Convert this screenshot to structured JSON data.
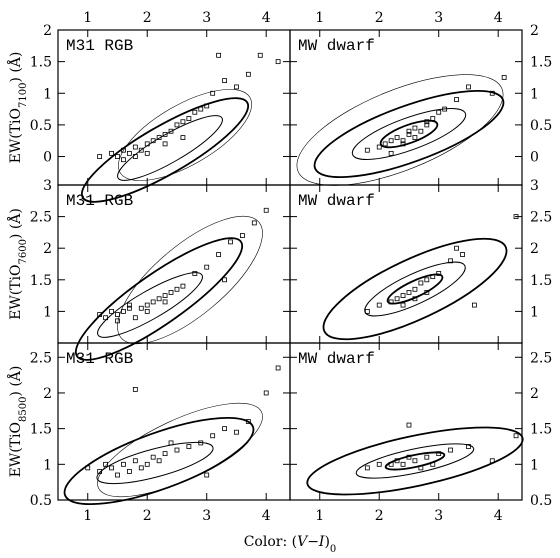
{
  "xlabel": [
    "Color: (",
    "V−I",
    ")",
    "0"
  ],
  "chart_data": [
    {
      "type": "scatter",
      "title": "M31 RGB",
      "ylabel": [
        "EW(TiO",
        "7100",
        ") (Å)"
      ],
      "x": [
        1.2,
        1.4,
        1.5,
        1.6,
        1.7,
        1.8,
        1.9,
        2.0,
        2.1,
        2.2,
        2.3,
        2.4,
        2.5,
        2.6,
        2.7,
        2.8,
        2.9,
        3.0,
        3.1,
        3.3,
        3.5,
        3.7,
        3.9,
        4.2,
        1.6,
        1.8,
        2.0,
        2.3,
        2.6,
        3.2
      ],
      "y": [
        0.0,
        0.05,
        0.0,
        0.1,
        0.05,
        0.15,
        0.1,
        0.2,
        0.25,
        0.3,
        0.35,
        0.4,
        0.5,
        0.55,
        0.6,
        0.7,
        0.75,
        0.8,
        1.0,
        1.2,
        1.1,
        1.3,
        1.6,
        1.5,
        -0.05,
        0.0,
        0.05,
        0.2,
        0.3,
        1.6
      ],
      "xlim": [
        0.5,
        4.4
      ],
      "ylim": [
        -0.45,
        2
      ],
      "xticks": [
        1,
        2,
        3,
        4
      ],
      "yticks": [
        0,
        0.5,
        1,
        1.5,
        2
      ],
      "xtick_labels": "top",
      "ytick_labels": "left"
    },
    {
      "type": "scatter",
      "title": "MW dwarf",
      "x": [
        1.8,
        2.0,
        2.1,
        2.2,
        2.3,
        2.4,
        2.5,
        2.5,
        2.6,
        2.7,
        2.8,
        2.9,
        3.0,
        3.1,
        3.3,
        3.5,
        2.2,
        2.4,
        2.6,
        2.8,
        3.9,
        4.1
      ],
      "y": [
        0.1,
        0.15,
        0.2,
        0.25,
        0.3,
        0.25,
        0.35,
        0.4,
        0.45,
        0.4,
        0.55,
        0.6,
        0.7,
        0.75,
        0.9,
        1.1,
        0.05,
        0.2,
        0.3,
        0.5,
        1.0,
        1.25
      ],
      "xlim": [
        0.5,
        4.4
      ],
      "ylim": [
        -0.45,
        2
      ],
      "xticks": [
        1,
        2,
        3,
        4
      ],
      "yticks": [
        0,
        0.5,
        1,
        1.5,
        2
      ],
      "xtick_labels": "top",
      "ytick_labels": "right"
    },
    {
      "type": "scatter",
      "title": "M31 RGB",
      "ylabel": [
        "EW(TiO",
        "7600",
        ") (Å)"
      ],
      "x": [
        1.2,
        1.3,
        1.4,
        1.5,
        1.6,
        1.7,
        1.8,
        1.9,
        2.0,
        2.1,
        2.2,
        2.3,
        2.4,
        2.5,
        2.6,
        2.8,
        3.0,
        3.2,
        3.4,
        3.6,
        3.8,
        1.5,
        1.7,
        2.0,
        2.3,
        3.3,
        4.0
      ],
      "y": [
        0.95,
        0.9,
        1.0,
        0.95,
        1.0,
        1.05,
        0.9,
        1.05,
        1.1,
        1.15,
        1.2,
        1.25,
        1.3,
        1.35,
        1.4,
        1.6,
        1.7,
        1.9,
        2.1,
        2.2,
        2.4,
        0.85,
        1.1,
        1.0,
        1.15,
        1.5,
        2.6
      ],
      "xlim": [
        0.5,
        4.4
      ],
      "ylim": [
        0.5,
        3
      ],
      "xticks": [
        1,
        2,
        3,
        4
      ],
      "yticks": [
        1,
        1.5,
        2,
        2.5,
        3
      ],
      "ytick_labels": "left"
    },
    {
      "type": "scatter",
      "title": "MW dwarf",
      "x": [
        1.8,
        2.0,
        2.2,
        2.3,
        2.4,
        2.5,
        2.6,
        2.7,
        2.8,
        2.9,
        3.0,
        3.2,
        3.4,
        2.4,
        2.6,
        2.8,
        3.3,
        3.6,
        4.3
      ],
      "y": [
        1.0,
        1.1,
        1.15,
        1.2,
        1.25,
        1.3,
        1.35,
        1.45,
        1.5,
        1.55,
        1.6,
        1.8,
        1.9,
        1.1,
        1.2,
        1.3,
        2.0,
        1.1,
        2.5
      ],
      "xlim": [
        0.5,
        4.4
      ],
      "ylim": [
        0.5,
        3
      ],
      "xticks": [
        1,
        2,
        3,
        4
      ],
      "yticks": [
        1,
        1.5,
        2,
        2.5,
        3
      ],
      "ytick_labels": "right"
    },
    {
      "type": "scatter",
      "title": "M31 RGB",
      "ylabel": [
        "EW(TiO",
        "8500",
        ") (Å)"
      ],
      "x": [
        1.0,
        1.2,
        1.3,
        1.4,
        1.5,
        1.6,
        1.7,
        1.8,
        1.9,
        2.0,
        2.1,
        2.2,
        2.3,
        2.5,
        2.7,
        2.9,
        3.1,
        3.3,
        3.5,
        3.7,
        1.8,
        2.4,
        3.0,
        4.0,
        4.2
      ],
      "y": [
        0.95,
        0.9,
        1.0,
        0.95,
        0.85,
        1.0,
        0.9,
        1.05,
        0.95,
        1.0,
        1.1,
        1.05,
        1.15,
        1.2,
        1.25,
        1.3,
        1.4,
        1.5,
        1.45,
        1.6,
        2.05,
        1.3,
        0.85,
        2.0,
        2.35
      ],
      "xlim": [
        0.5,
        4.4
      ],
      "ylim": [
        0.5,
        2.7
      ],
      "xticks": [
        1,
        2,
        3,
        4
      ],
      "yticks": [
        0.5,
        1,
        1.5,
        2,
        2.5
      ],
      "xtick_labels": "bottom",
      "ytick_labels": "left"
    },
    {
      "type": "scatter",
      "title": "MW dwarf",
      "x": [
        1.8,
        2.0,
        2.2,
        2.3,
        2.4,
        2.5,
        2.6,
        2.7,
        2.8,
        2.9,
        3.0,
        3.2,
        3.5,
        4.3,
        3.9,
        2.5
      ],
      "y": [
        0.95,
        1.0,
        1.0,
        1.05,
        1.0,
        1.1,
        1.05,
        0.95,
        1.1,
        1.0,
        1.15,
        1.2,
        1.25,
        1.4,
        1.05,
        1.55
      ],
      "xlim": [
        0.5,
        4.4
      ],
      "ylim": [
        0.5,
        2.7
      ],
      "xticks": [
        1,
        2,
        3,
        4
      ],
      "yticks": [
        0.5,
        1,
        1.5,
        2,
        2.5
      ],
      "xtick_labels": "bottom",
      "ytick_labels": "right"
    }
  ]
}
